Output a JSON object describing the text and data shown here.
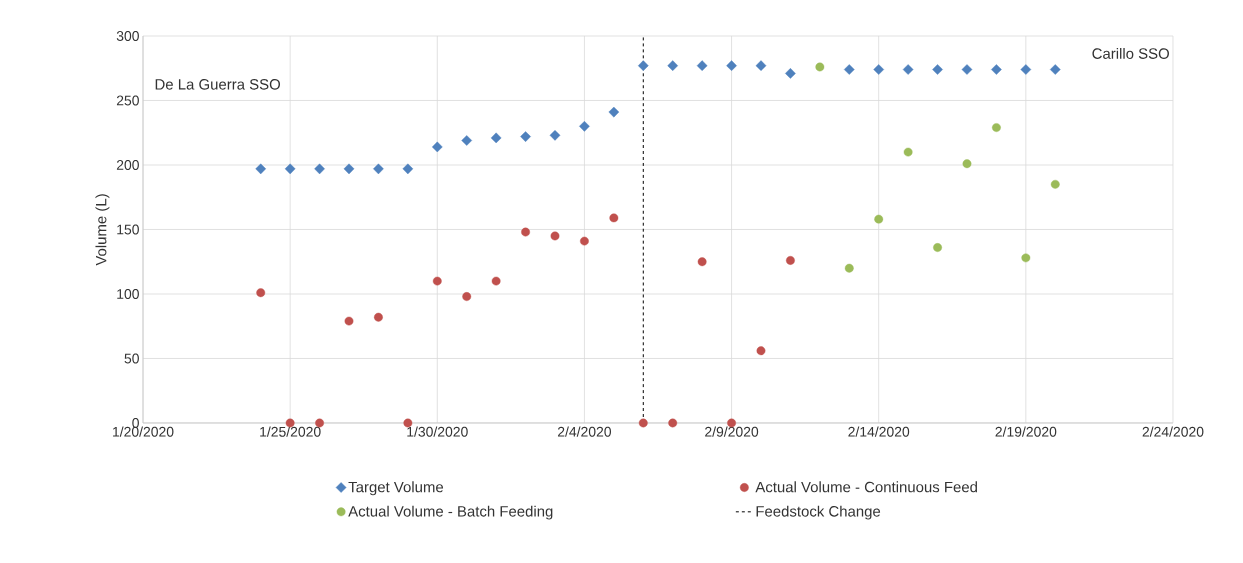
{
  "chart_data": {
    "type": "scatter",
    "ylabel": "Volume (L)",
    "x": [
      "2020-01-24",
      "2020-01-25",
      "2020-01-26",
      "2020-01-27",
      "2020-01-28",
      "2020-01-29",
      "2020-01-30",
      "2020-01-31",
      "2020-02-01",
      "2020-02-02",
      "2020-02-03",
      "2020-02-04",
      "2020-02-05",
      "2020-02-06",
      "2020-02-07",
      "2020-02-08",
      "2020-02-09",
      "2020-02-10",
      "2020-02-11",
      "2020-02-12",
      "2020-02-13",
      "2020-02-14",
      "2020-02-15",
      "2020-02-16",
      "2020-02-17",
      "2020-02-18",
      "2020-02-19",
      "2020-02-20"
    ],
    "series": [
      {
        "name": "Target Volume",
        "color": "#4f81bd",
        "marker": "diamond",
        "values": [
          197,
          197,
          197,
          197,
          197,
          197,
          214,
          219,
          221,
          222,
          223,
          230,
          241,
          277,
          277,
          277,
          277,
          277,
          271,
          null,
          274,
          274,
          274,
          274,
          274,
          274,
          274,
          274
        ]
      },
      {
        "name": "Actual Volume - Continuous Feed",
        "color": "#c0504d",
        "marker": "circle",
        "values": [
          101,
          0,
          0,
          79,
          82,
          0,
          110,
          98,
          110,
          148,
          145,
          141,
          159,
          0,
          0,
          125,
          0,
          56,
          126,
          null,
          null,
          null,
          null,
          null,
          null,
          null,
          null,
          null
        ]
      },
      {
        "name": "Actual Volume - Batch Feeding",
        "color": "#9bbb59",
        "marker": "circle",
        "values": [
          null,
          null,
          null,
          null,
          null,
          null,
          null,
          null,
          null,
          null,
          null,
          null,
          null,
          null,
          null,
          null,
          null,
          null,
          null,
          276,
          120,
          158,
          210,
          136,
          201,
          229,
          128,
          185
        ]
      }
    ],
    "ref_lines": [
      {
        "axis": "x",
        "value": "2020-02-06",
        "label": "Feedstock Change",
        "color": "#000000",
        "line_style": "dashed"
      }
    ],
    "annotations": [
      "De La Guerra SSO",
      "Carillo SSO"
    ],
    "xlim": [
      "2020-01-20",
      "2020-02-24"
    ],
    "xticks": [
      {
        "value": "2020-01-20",
        "label": "1/20/2020"
      },
      {
        "value": "2020-01-25",
        "label": "1/25/2020"
      },
      {
        "value": "2020-01-30",
        "label": "1/30/2020"
      },
      {
        "value": "2020-02-04",
        "label": "2/4/2020"
      },
      {
        "value": "2020-02-09",
        "label": "2/9/2020"
      },
      {
        "value": "2020-02-14",
        "label": "2/14/2020"
      },
      {
        "value": "2020-02-19",
        "label": "2/19/2020"
      },
      {
        "value": "2020-02-24",
        "label": "2/24/2020"
      }
    ],
    "ylim": [
      0,
      300
    ],
    "yticks": [
      0,
      50,
      100,
      150,
      200,
      250,
      300
    ],
    "grid": true,
    "legend": "bottom"
  }
}
